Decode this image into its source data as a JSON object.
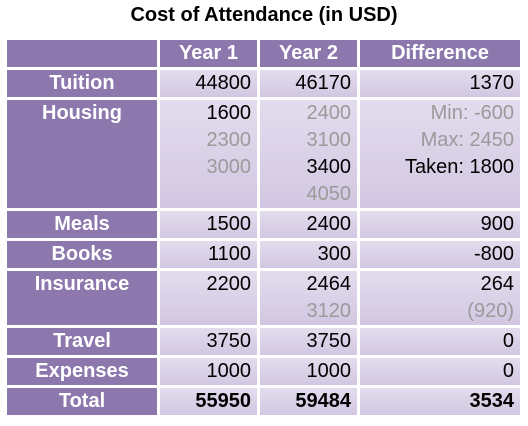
{
  "title": "Cost of Attendance (in USD)",
  "table": {
    "headers": [
      "Year 1",
      "Year 2",
      "Difference"
    ],
    "rows": [
      {
        "label": "Tuition",
        "cells": [
          [
            {
              "text": "44800"
            }
          ],
          [
            {
              "text": "46170"
            }
          ],
          [
            {
              "text": "1370"
            }
          ]
        ]
      },
      {
        "label": "Housing",
        "cells": [
          [
            {
              "text": "1600"
            },
            {
              "text": "2300",
              "gray": true
            },
            {
              "text": "3000",
              "gray": true
            }
          ],
          [
            {
              "text": "2400",
              "gray": true
            },
            {
              "text": "3100",
              "gray": true
            },
            {
              "text": "3400"
            },
            {
              "text": "4050",
              "gray": true
            }
          ],
          [
            {
              "text": "Min: -600",
              "gray": true
            },
            {
              "text": "Max: 2450",
              "gray": true
            },
            {
              "text": "Taken: 1800"
            }
          ]
        ]
      },
      {
        "label": "Meals",
        "cells": [
          [
            {
              "text": "1500"
            }
          ],
          [
            {
              "text": "2400"
            }
          ],
          [
            {
              "text": "900"
            }
          ]
        ]
      },
      {
        "label": "Books",
        "cells": [
          [
            {
              "text": "1100"
            }
          ],
          [
            {
              "text": "300"
            }
          ],
          [
            {
              "text": "-800"
            }
          ]
        ]
      },
      {
        "label": "Insurance",
        "cells": [
          [
            {
              "text": "2200"
            }
          ],
          [
            {
              "text": "2464"
            },
            {
              "text": "3120",
              "gray": true
            }
          ],
          [
            {
              "text": "264"
            },
            {
              "text": "(920)",
              "gray": true
            }
          ]
        ]
      },
      {
        "label": "Travel",
        "cells": [
          [
            {
              "text": "3750"
            }
          ],
          [
            {
              "text": "3750"
            }
          ],
          [
            {
              "text": "0"
            }
          ]
        ]
      },
      {
        "label": "Expenses",
        "cells": [
          [
            {
              "text": "1000"
            }
          ],
          [
            {
              "text": "1000"
            }
          ],
          [
            {
              "text": "0"
            }
          ]
        ]
      },
      {
        "label": "Total",
        "bold": true,
        "cells": [
          [
            {
              "text": "55950"
            }
          ],
          [
            {
              "text": "59484"
            }
          ],
          [
            {
              "text": "3534"
            }
          ]
        ]
      }
    ]
  }
}
